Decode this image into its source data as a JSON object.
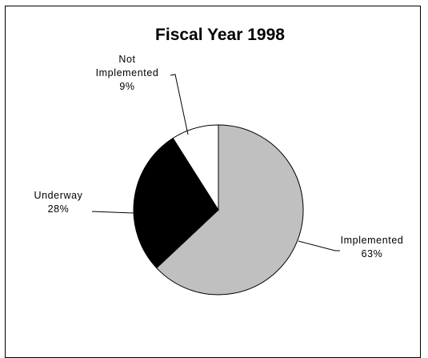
{
  "chart_data": {
    "type": "pie",
    "title": "Fiscal Year 1998",
    "slices": [
      {
        "label_lines": [
          "Implemented"
        ],
        "value": 63,
        "percent_label": "63%",
        "color": "#c0c0c0"
      },
      {
        "label_lines": [
          "Underway"
        ],
        "value": 28,
        "percent_label": "28%",
        "color": "#000000"
      },
      {
        "label_lines": [
          "Not",
          "Implemented"
        ],
        "value": 9,
        "percent_label": "9%",
        "color": "#ffffff"
      }
    ],
    "legend": "none",
    "start_angle": "12 o'clock",
    "direction": "clockwise"
  }
}
